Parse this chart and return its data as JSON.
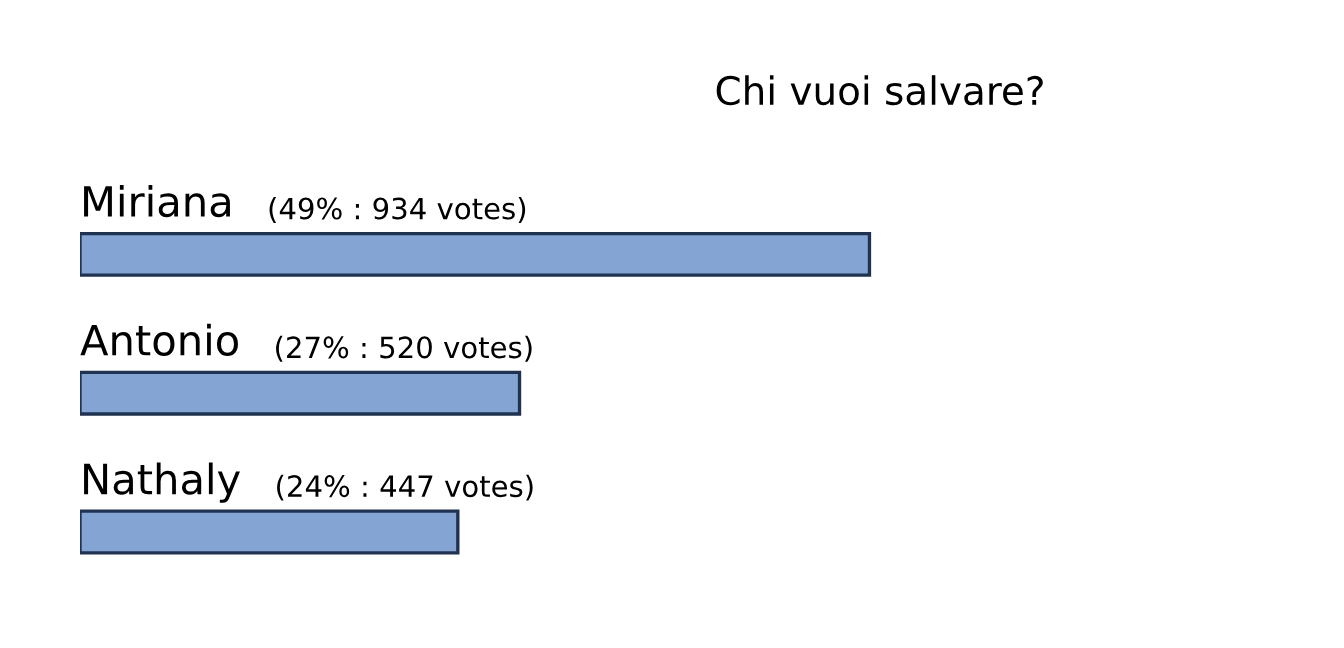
{
  "chart_data": {
    "type": "bar",
    "orientation": "horizontal",
    "title": "Chi vuoi salvare?",
    "categories": [
      "Miriana",
      "Antonio",
      "Nathaly"
    ],
    "values": [
      934,
      520,
      447
    ],
    "value_labels": [
      "(49% : 934 votes)",
      "(27% : 520 votes)",
      "(24% : 447 votes)"
    ],
    "color": "#84a4d4",
    "grid": false,
    "legend": false
  }
}
